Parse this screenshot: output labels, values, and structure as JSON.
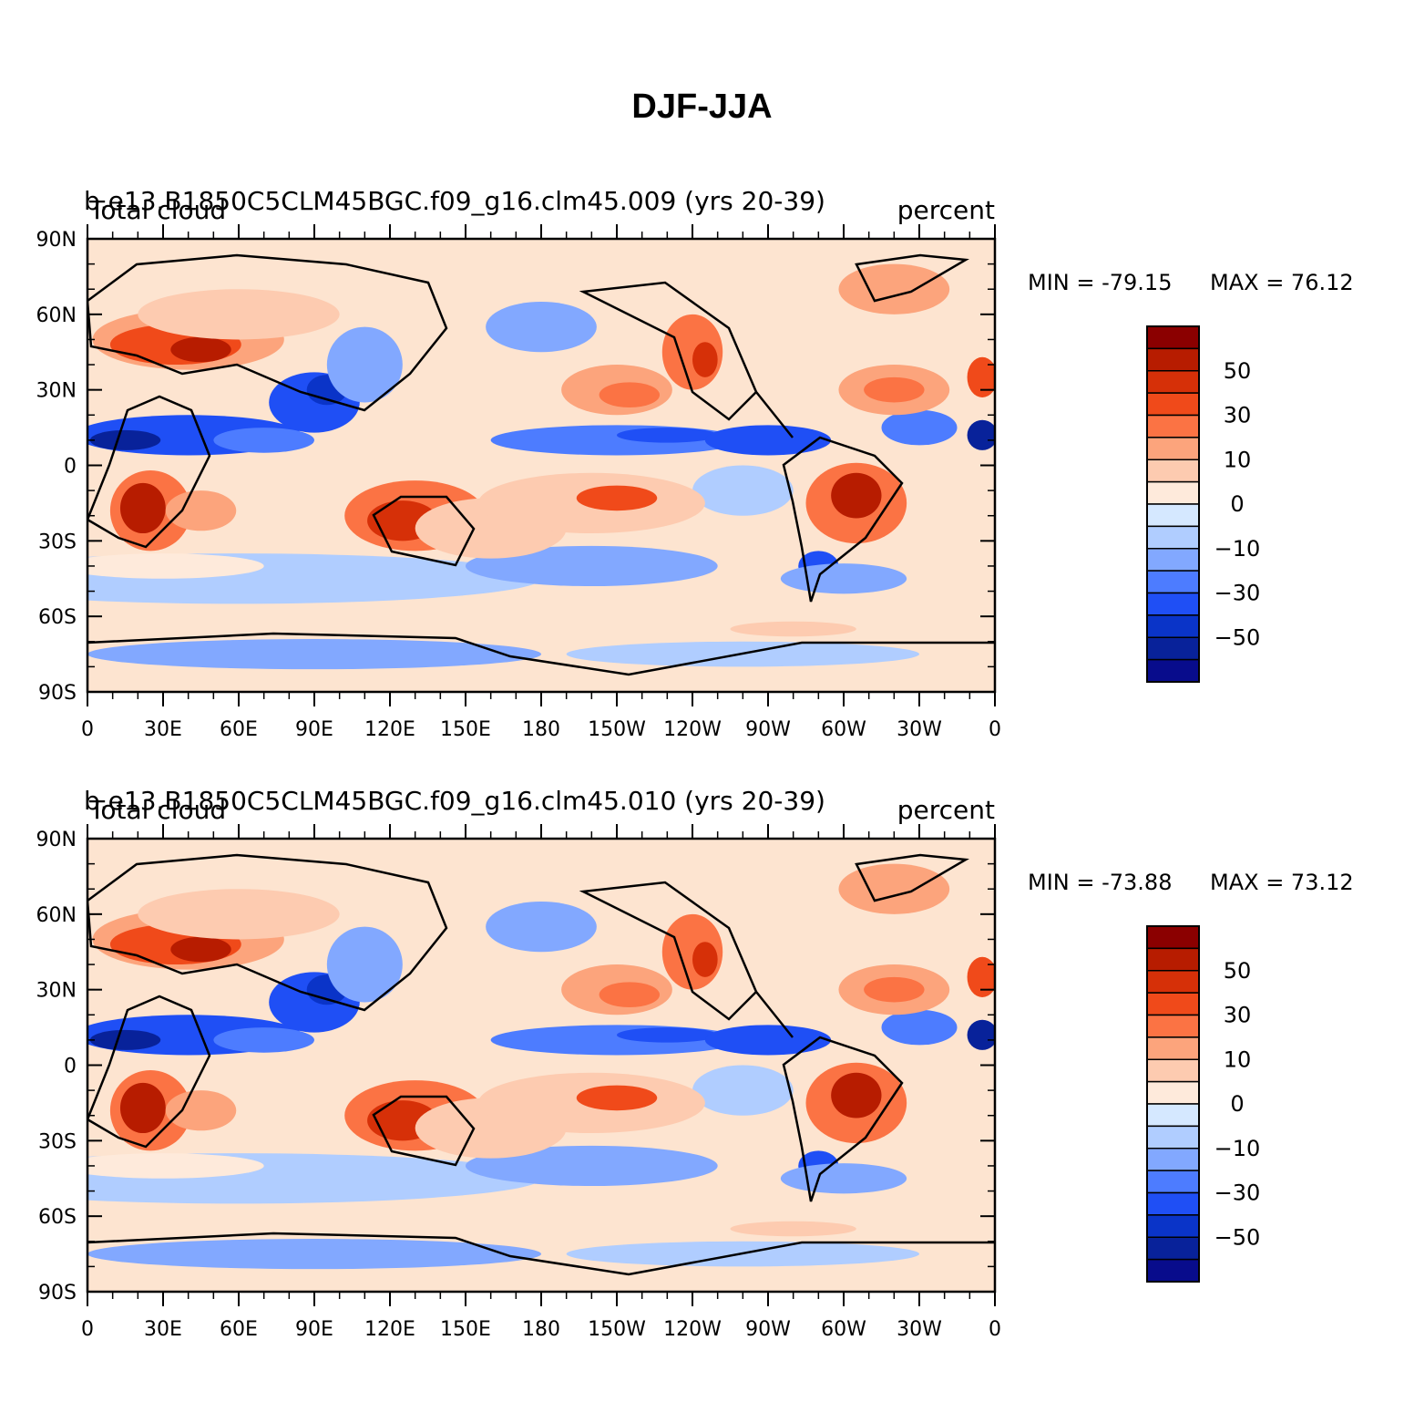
{
  "title": "DJF-JJA",
  "panels": [
    {
      "case_label": "b.e13.B1850C5CLM45BGC.f09_g16.clm45.009 (yrs 20-39)",
      "variable_label": "Total cloud",
      "units_label": "percent",
      "min_label": "MIN = -79.15",
      "max_label": "MAX = 76.12"
    },
    {
      "case_label": "b.e13.B1850C5CLM45BGC.f09_g16.clm45.010 (yrs 20-39)",
      "variable_label": "Total cloud",
      "units_label": "percent",
      "min_label": "MIN = -73.88",
      "max_label": "MAX = 73.12"
    }
  ],
  "lat_labels": [
    "90N",
    "60N",
    "30N",
    "0",
    "30S",
    "60S",
    "90S"
  ],
  "lon_labels": [
    "0",
    "30E",
    "60E",
    "90E",
    "120E",
    "150E",
    "180",
    "150W",
    "120W",
    "90W",
    "60W",
    "30W",
    "0"
  ],
  "colorbar": {
    "labels": [
      "50",
      "30",
      "10",
      "0",
      "−10",
      "−30",
      "−50"
    ],
    "colors": [
      "#8b0000",
      "#b71c00",
      "#d63008",
      "#f04a1a",
      "#fb7344",
      "#fca47c",
      "#fdcbb0",
      "#feeadb",
      "#d5e8ff",
      "#b0cdff",
      "#82a8ff",
      "#4d7cff",
      "#1f4ff5",
      "#0a34c8",
      "#08229a",
      "#080c8c"
    ]
  },
  "chart_data": {
    "type": "heatmap",
    "title": "DJF-JJA",
    "panels": [
      "b.e13.B1850C5CLM45BGC.f09_g16.clm45.009 (yrs 20-39)",
      "b.e13.B1850C5CLM45BGC.f09_g16.clm45.010 (yrs 20-39)"
    ],
    "variable": "Total cloud",
    "units": "percent",
    "x_range": [
      0,
      360
    ],
    "y_range": [
      -90,
      90
    ],
    "contour_levels": [
      -70,
      -60,
      -50,
      -40,
      -30,
      -20,
      -10,
      -5,
      0,
      5,
      10,
      20,
      30,
      40,
      50,
      60,
      70
    ],
    "stats": [
      {
        "min": -79.15,
        "max": 76.12
      },
      {
        "min": -73.88,
        "max": 73.12
      }
    ]
  }
}
